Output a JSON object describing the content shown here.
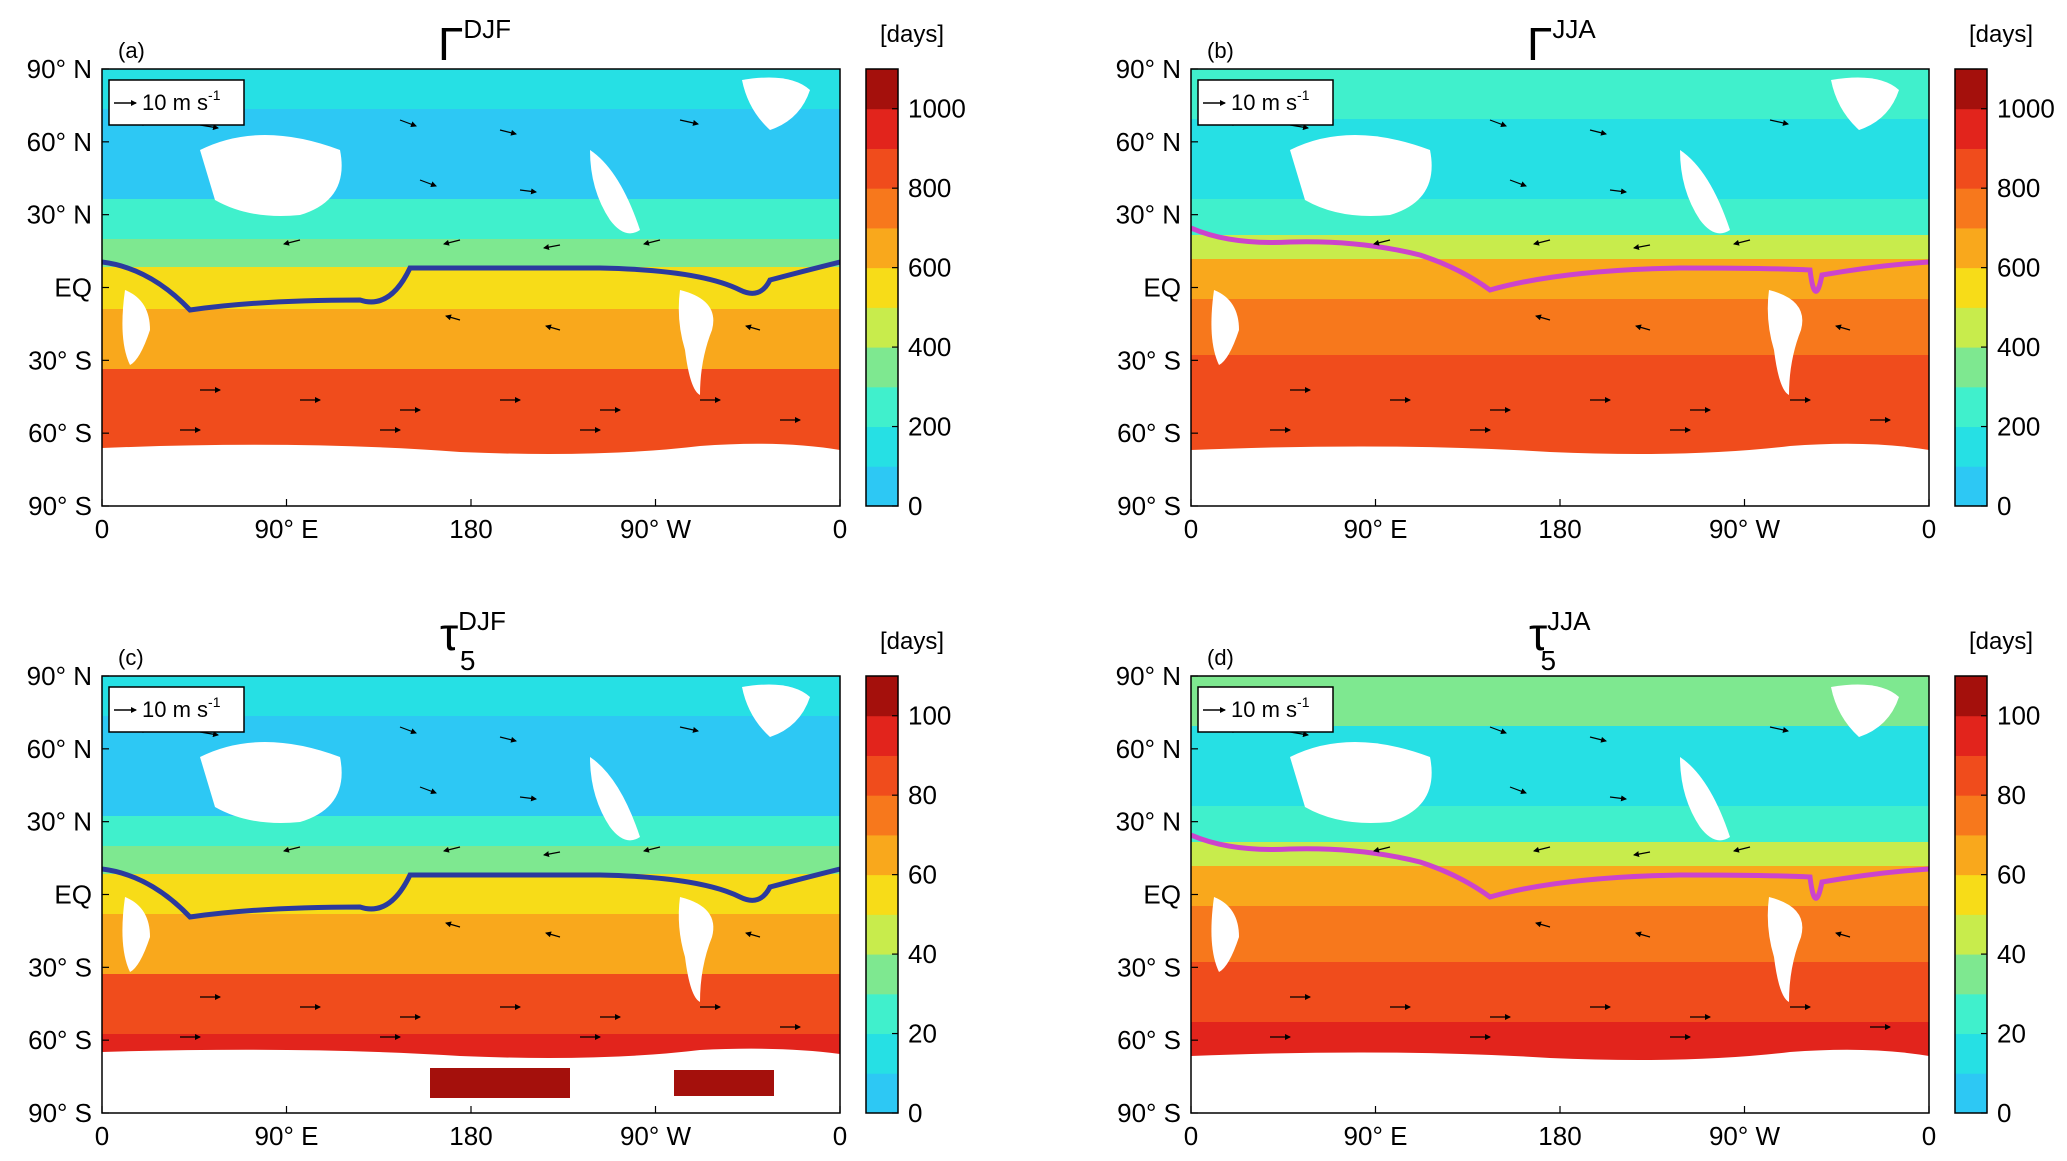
{
  "panels": [
    {
      "id": "a",
      "letter": "(a)",
      "symbol": "Γ",
      "superscript": "DJF",
      "subscript": "",
      "units": "[days]",
      "scale_arrow_label": "10 m s",
      "scale_arrow_exp": "-1",
      "colorbar_ticks": [
        "0",
        "200",
        "400",
        "600",
        "800",
        "1000"
      ],
      "colorbar_max": 1100,
      "itcz_color": "#2b3a9e"
    },
    {
      "id": "b",
      "letter": "(b)",
      "symbol": "Γ",
      "superscript": "JJA",
      "subscript": "",
      "units": "[days]",
      "scale_arrow_label": "10 m s",
      "scale_arrow_exp": "-1",
      "colorbar_ticks": [
        "0",
        "200",
        "400",
        "600",
        "800",
        "1000"
      ],
      "colorbar_max": 1100,
      "itcz_color": "#cc44cc"
    },
    {
      "id": "c",
      "letter": "(c)",
      "symbol": "τ",
      "superscript": "DJF",
      "subscript": "5",
      "units": "[days]",
      "scale_arrow_label": "10 m s",
      "scale_arrow_exp": "-1",
      "colorbar_ticks": [
        "0",
        "20",
        "40",
        "60",
        "80",
        "100"
      ],
      "colorbar_max": 110,
      "itcz_color": "#2b3a9e"
    },
    {
      "id": "d",
      "letter": "(d)",
      "symbol": "τ",
      "superscript": "JJA",
      "subscript": "5",
      "units": "[days]",
      "scale_arrow_label": "10 m s",
      "scale_arrow_exp": "-1",
      "colorbar_ticks": [
        "0",
        "20",
        "40",
        "60",
        "80",
        "100"
      ],
      "colorbar_max": 110,
      "itcz_color": "#cc44cc"
    }
  ],
  "lat_ticks": [
    "90° N",
    "60° N",
    "30° N",
    "EQ",
    "30° S",
    "60° S",
    "90° S"
  ],
  "lon_ticks": [
    "0",
    "90° E",
    "180",
    "90° W",
    "0"
  ],
  "colorbar_colors": [
    "#2dc8f4",
    "#26e0e4",
    "#40f0cc",
    "#7ee890",
    "#c8ec4c",
    "#f7dc18",
    "#f9a81c",
    "#f7781c",
    "#f04c1c",
    "#e2241c",
    "#a4100c"
  ]
}
